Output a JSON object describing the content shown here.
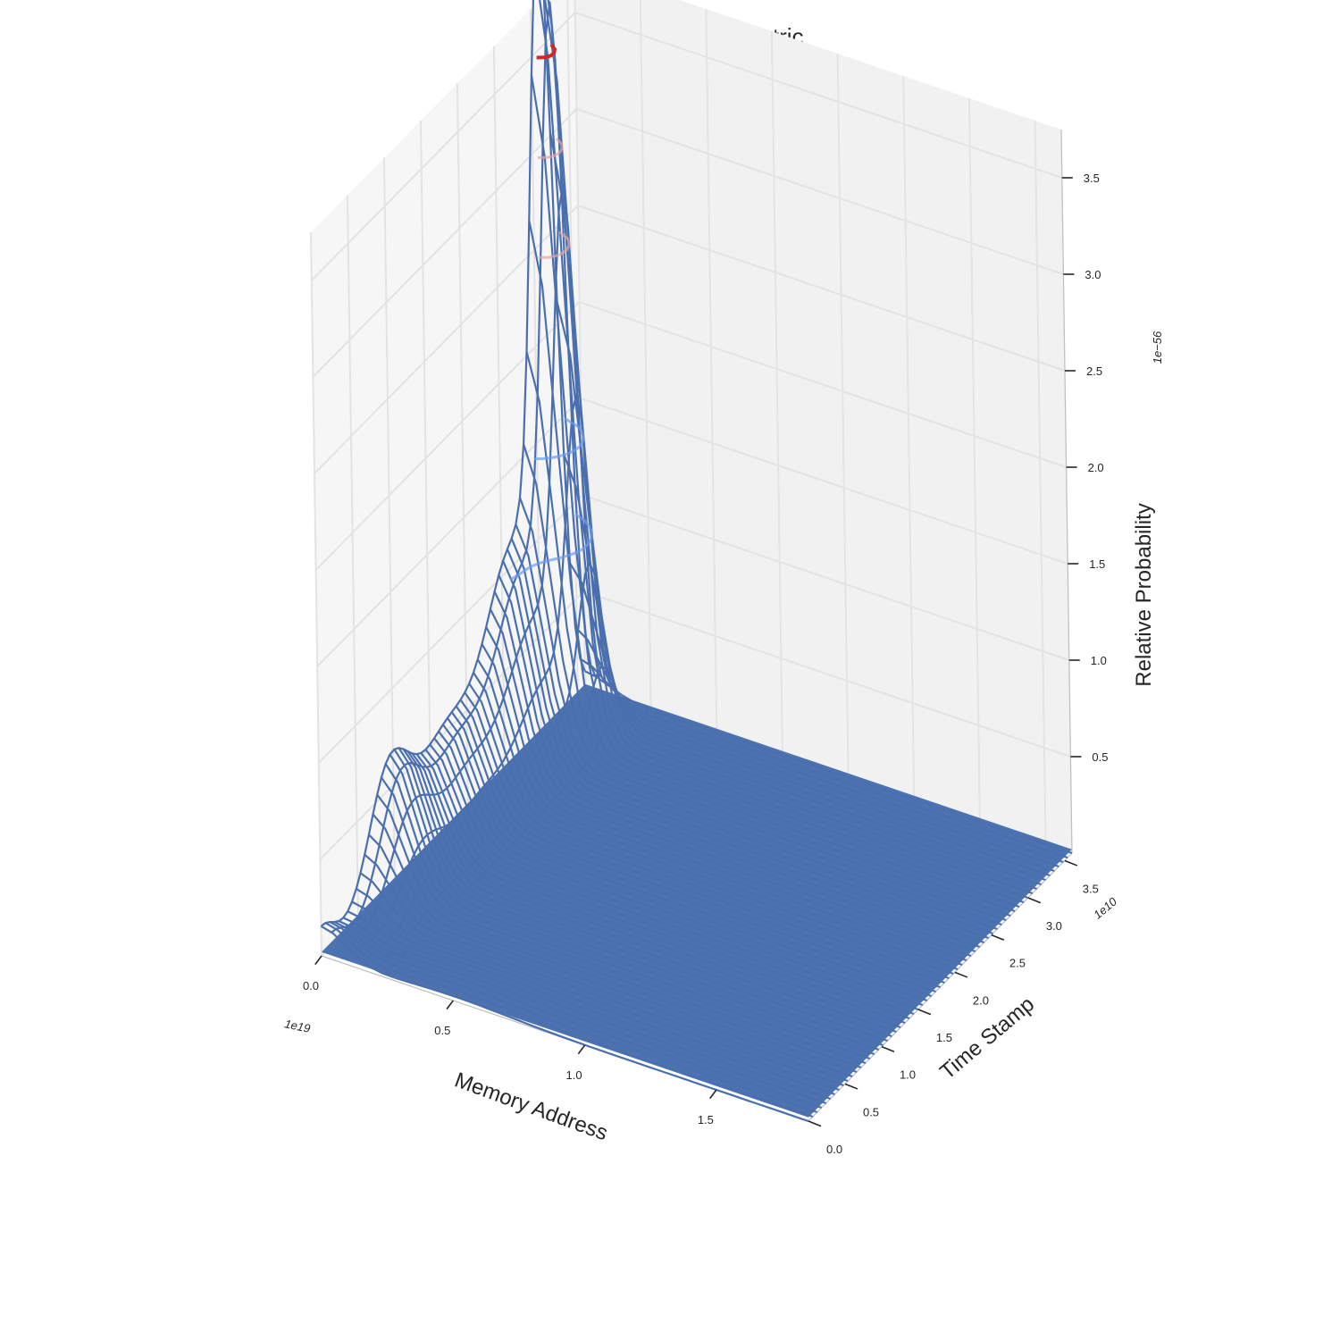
{
  "chart_data": {
    "type": "surface3d",
    "title": "KDE False Sharing Metric",
    "xlabel": "Memory Address",
    "ylabel": "Time Stamp",
    "zlabel": "Relative Probability",
    "x_offset_label": "1e19",
    "y_offset_label": "1e10",
    "z_offset_label": "1e−56",
    "x_ticks": [
      0.0,
      0.5,
      1.0,
      1.5
    ],
    "x_tick_labels": [
      "0.0",
      "0.5",
      "1.0",
      "1.5"
    ],
    "y_ticks": [
      0.0,
      0.5,
      1.0,
      1.5,
      2.0,
      2.5,
      3.0,
      3.5
    ],
    "y_tick_labels": [
      "0.0",
      "0.5",
      "1.0",
      "1.5",
      "2.0",
      "2.5",
      "3.0",
      "3.5"
    ],
    "z_ticks": [
      0.5,
      1.0,
      1.5,
      2.0,
      2.5,
      3.0,
      3.5
    ],
    "z_tick_labels": [
      "0.5",
      "1.0",
      "1.5",
      "2.0",
      "2.5",
      "3.0",
      "3.5"
    ],
    "xlim": [
      0.0,
      1.85
    ],
    "ylim": [
      0.0,
      3.6
    ],
    "zlim": [
      0.0,
      3.75
    ],
    "peaks": [
      {
        "x": 0.0,
        "y": 3.1,
        "z": 3.6
      },
      {
        "x": 0.0,
        "y": 1.6,
        "z": 0.75
      },
      {
        "x": 0.0,
        "y": 0.9,
        "z": 0.65
      },
      {
        "x": 0.0,
        "y": 0.0,
        "z": 0.15
      }
    ],
    "contour_levels": [
      1.0,
      1.5,
      2.5,
      3.0,
      3.5
    ],
    "grid": true,
    "colors": {
      "surface": "#4c72b0",
      "wire": "#4a6fae",
      "contour_low": "#6b9cf0",
      "contour_high": "#d62728",
      "pane_back": "#f1f1f1",
      "pane_left": "#f6f6f6",
      "grid": "#e3e3e3"
    }
  }
}
